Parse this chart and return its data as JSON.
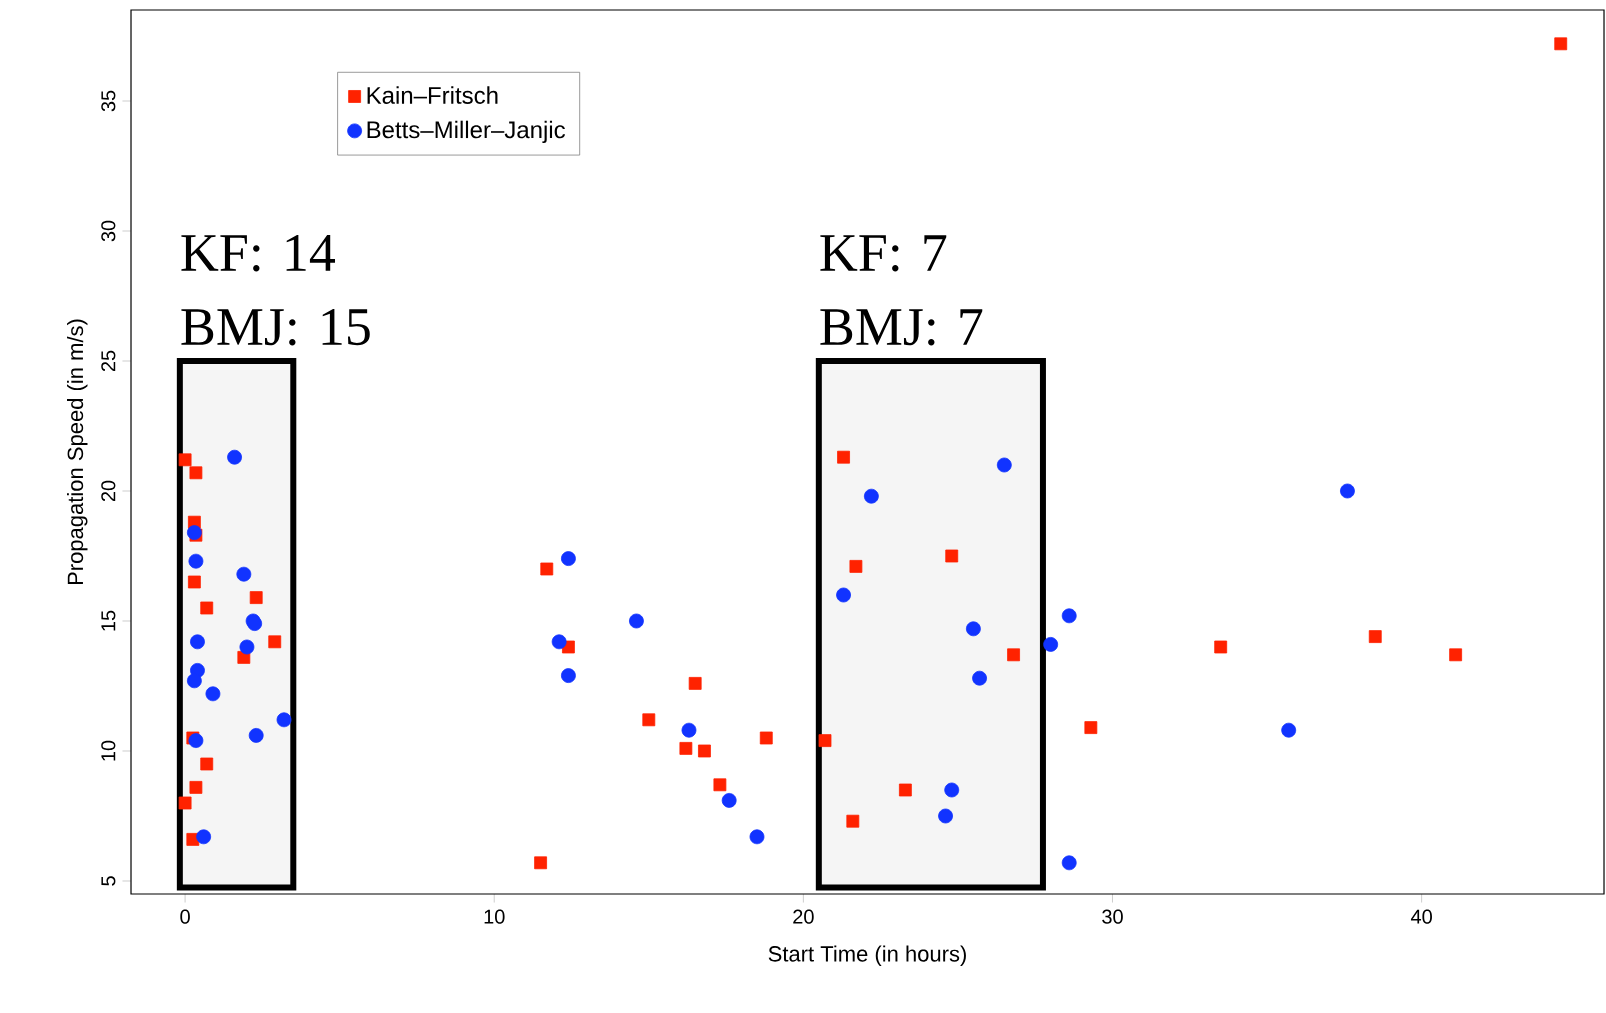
{
  "chart_data": {
    "type": "scatter",
    "xlabel": "Start Time (in hours)",
    "ylabel": "Propagation Speed (in m/s)",
    "xlim": [
      -1.75,
      45.9
    ],
    "ylim": [
      4.5,
      38.5
    ],
    "xticks": [
      0,
      10,
      20,
      30,
      40
    ],
    "yticks": [
      5,
      10,
      15,
      20,
      25,
      30,
      35
    ],
    "grid": false,
    "legend": "top left",
    "series": [
      {
        "name": "Kain–Fritsch",
        "color": "#ff2200",
        "marker": "square",
        "x": [
          0,
          0.35,
          0.3,
          0.35,
          0.3,
          0.7,
          2.3,
          2.9,
          1.9,
          0.25,
          0.7,
          0.35,
          0,
          0.25,
          11.7,
          11.5,
          12.4,
          15.0,
          16.5,
          16.2,
          16.8,
          17.3,
          18.8,
          20.7,
          21.3,
          21.7,
          21.6,
          23.3,
          24.8,
          26.8,
          29.3,
          33.5,
          38.5,
          41.1,
          44.5
        ],
        "values": [
          21.2,
          20.7,
          18.8,
          18.3,
          16.5,
          15.5,
          15.9,
          14.2,
          13.6,
          10.5,
          9.5,
          8.6,
          8.0,
          6.6,
          17.0,
          5.7,
          14.0,
          11.2,
          12.6,
          10.1,
          10.0,
          8.7,
          10.5,
          10.4,
          21.3,
          17.1,
          7.3,
          8.5,
          17.5,
          13.7,
          10.9,
          14.0,
          14.4,
          13.7,
          37.2
        ]
      },
      {
        "name": "Betts–Miller–Janjic",
        "color": "#1133ff",
        "marker": "circle",
        "x": [
          1.6,
          0.3,
          0.35,
          1.9,
          2.2,
          2.25,
          0.4,
          2.0,
          0.4,
          0.3,
          0.9,
          3.2,
          2.3,
          0.35,
          0.6,
          12.4,
          12.1,
          12.4,
          14.6,
          16.3,
          17.6,
          18.5,
          21.3,
          22.2,
          26.5,
          25.5,
          25.7,
          24.8,
          24.6,
          28.6,
          28.0,
          28.6,
          37.6,
          35.7
        ],
        "values": [
          21.3,
          18.4,
          17.3,
          16.8,
          15.0,
          14.9,
          14.2,
          14.0,
          13.1,
          12.7,
          12.2,
          11.2,
          10.6,
          10.4,
          6.7,
          17.4,
          14.2,
          12.9,
          15.0,
          10.8,
          8.1,
          6.7,
          16.0,
          19.8,
          21.0,
          14.7,
          12.8,
          8.5,
          7.5,
          15.2,
          14.1,
          5.7,
          20.0,
          10.8
        ]
      }
    ],
    "bands": [
      {
        "axis": "x",
        "from": -0.17,
        "to": 3.5,
        "label": "KF: 14 BMJ: 15",
        "color": "#000000"
      },
      {
        "axis": "x",
        "from": 20.5,
        "to": 27.75,
        "label": "KF: 7 BMJ: 7",
        "color": "#000000"
      }
    ]
  }
}
